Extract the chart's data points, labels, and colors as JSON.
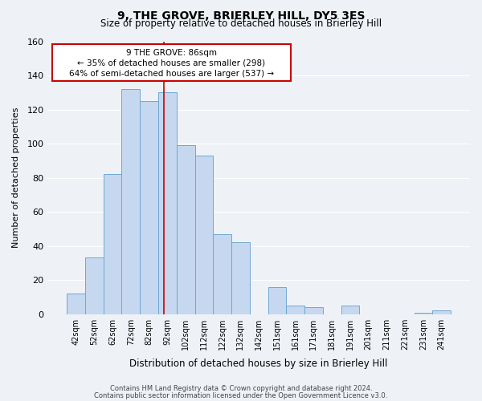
{
  "title": "9, THE GROVE, BRIERLEY HILL, DY5 3ES",
  "subtitle": "Size of property relative to detached houses in Brierley Hill",
  "xlabel": "Distribution of detached houses by size in Brierley Hill",
  "ylabel": "Number of detached properties",
  "bar_labels": [
    "42sqm",
    "52sqm",
    "62sqm",
    "72sqm",
    "82sqm",
    "92sqm",
    "102sqm",
    "112sqm",
    "122sqm",
    "132sqm",
    "142sqm",
    "151sqm",
    "161sqm",
    "171sqm",
    "181sqm",
    "191sqm",
    "201sqm",
    "211sqm",
    "221sqm",
    "231sqm",
    "241sqm"
  ],
  "bar_values": [
    12,
    33,
    82,
    132,
    125,
    130,
    99,
    93,
    47,
    42,
    0,
    16,
    5,
    4,
    0,
    5,
    0,
    0,
    0,
    1,
    2
  ],
  "bar_color": "#c5d8ef",
  "bar_edge_color": "#6fa8d0",
  "ylim": [
    0,
    160
  ],
  "yticks": [
    0,
    20,
    40,
    60,
    80,
    100,
    120,
    140,
    160
  ],
  "annotation_title": "9 THE GROVE: 86sqm",
  "annotation_line1": "← 35% of detached houses are smaller (298)",
  "annotation_line2": "64% of semi-detached houses are larger (537) →",
  "annotation_box_color": "#ffffff",
  "annotation_box_edge": "#cc0000",
  "red_line_color": "#cc0000",
  "footer_line1": "Contains HM Land Registry data © Crown copyright and database right 2024.",
  "footer_line2": "Contains public sector information licensed under the Open Government Licence v3.0.",
  "background_color": "#eef2f7",
  "grid_color": "#ffffff",
  "title_fontsize": 10,
  "subtitle_fontsize": 8.5,
  "ylabel_fontsize": 8,
  "xlabel_fontsize": 8.5,
  "tick_fontsize": 7,
  "footer_fontsize": 6
}
